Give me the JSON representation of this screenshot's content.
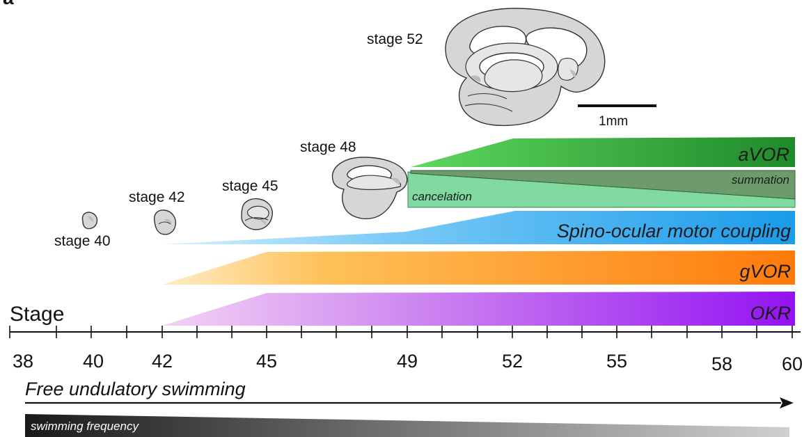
{
  "panel_label": "a",
  "axis": {
    "title": "Stage",
    "tick_labels": [
      "38",
      "40",
      "42",
      "45",
      "49",
      "52",
      "55",
      "58",
      "60"
    ]
  },
  "stage_labels": {
    "s40": "stage 40",
    "s42": "stage 42",
    "s45": "stage 45",
    "s48": "stage 48",
    "s52": "stage 52"
  },
  "scale_bar": {
    "label": "1mm"
  },
  "bands": {
    "avor": {
      "label": "aVOR",
      "color_start": "#5fd75f",
      "color_end": "#1f8a2a"
    },
    "summation": {
      "label": "summation",
      "color": "#6f9a6f"
    },
    "cancelation": {
      "label": "cancelation",
      "color": "#7ed9a0"
    },
    "spino": {
      "label": "Spino-ocular motor coupling",
      "color_start": "#bfe9ff",
      "color_end": "#1ea0ec"
    },
    "gvor": {
      "label": "gVOR",
      "color_start": "#ffe6b5",
      "color_end": "#ff7f0f"
    },
    "okr": {
      "label": "OKR",
      "color_start": "#f0c6f5",
      "color_end": "#9a19f2"
    }
  },
  "swimming": {
    "arrow_label": "Free undulatory swimming",
    "frequency_label": "swimming frequency",
    "gradient_start": "#1a1a1a",
    "gradient_end": "#d0d0d0"
  }
}
